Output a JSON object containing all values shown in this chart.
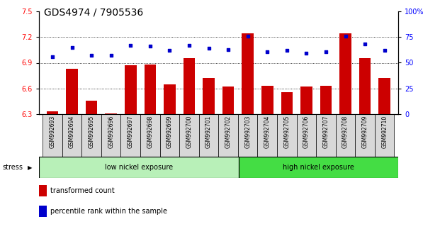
{
  "title": "GDS4974 / 7905536",
  "samples": [
    "GSM992693",
    "GSM992694",
    "GSM992695",
    "GSM992696",
    "GSM992697",
    "GSM992698",
    "GSM992699",
    "GSM992700",
    "GSM992701",
    "GSM992702",
    "GSM992703",
    "GSM992704",
    "GSM992705",
    "GSM992706",
    "GSM992707",
    "GSM992708",
    "GSM992709",
    "GSM992710"
  ],
  "transformed_count": [
    6.33,
    6.83,
    6.46,
    6.31,
    6.87,
    6.88,
    6.65,
    6.95,
    6.72,
    6.62,
    7.24,
    6.63,
    6.56,
    6.62,
    6.63,
    7.24,
    6.95,
    6.72
  ],
  "percentile_rank": [
    56,
    65,
    57,
    57,
    67,
    66,
    62,
    67,
    64,
    63,
    76,
    61,
    62,
    59,
    61,
    76,
    68,
    62
  ],
  "low_group_count": 10,
  "high_group_count": 8,
  "low_group_color": "#b8f0b8",
  "high_group_color": "#44dd44",
  "bar_color": "#cc0000",
  "dot_color": "#0000cc",
  "ylim_left": [
    6.3,
    7.5
  ],
  "ylim_right": [
    0,
    100
  ],
  "yticks_left": [
    6.3,
    6.6,
    6.9,
    7.2,
    7.5
  ],
  "yticks_right": [
    0,
    25,
    50,
    75,
    100
  ],
  "ytick_labels_right": [
    "0",
    "25",
    "50",
    "75",
    "100%"
  ],
  "grid_lines": [
    6.6,
    6.9,
    7.2
  ],
  "title_fontsize": 10,
  "sample_fontsize": 5.5,
  "axis_fontsize": 7,
  "legend_fontsize": 7,
  "group_fontsize": 7
}
